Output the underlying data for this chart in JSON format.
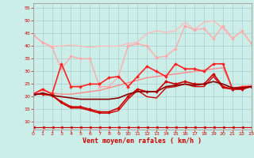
{
  "xlabel": "Vent moyen/en rafales ( km/h )",
  "xlim": [
    0,
    23
  ],
  "ylim": [
    7,
    57
  ],
  "yticks": [
    10,
    15,
    20,
    25,
    30,
    35,
    40,
    45,
    50,
    55
  ],
  "xticks": [
    0,
    1,
    2,
    3,
    4,
    5,
    6,
    7,
    8,
    9,
    10,
    11,
    12,
    13,
    14,
    15,
    16,
    17,
    18,
    19,
    20,
    21,
    22,
    23
  ],
  "bg_color": "#cceee8",
  "grid_color": "#aacccc",
  "lines": [
    {
      "x": [
        0,
        1,
        2,
        3,
        4,
        5,
        6,
        7,
        8,
        9,
        10,
        11,
        12,
        13,
        14,
        15,
        16,
        17,
        18,
        19,
        20,
        21,
        22,
        23
      ],
      "y": [
        44.5,
        41.5,
        40,
        40,
        40.5,
        40,
        39.5,
        40,
        40,
        40,
        41,
        41.5,
        45,
        46,
        45.5,
        46,
        49.5,
        46.5,
        49.5,
        50,
        47,
        43,
        46,
        41
      ],
      "color": "#ffbbbb",
      "lw": 1.0,
      "marker": null
    },
    {
      "x": [
        0,
        1,
        2,
        3,
        4,
        5,
        6,
        7,
        8,
        9,
        10,
        11,
        12,
        13,
        14,
        15,
        16,
        17,
        18,
        19,
        20,
        21,
        22,
        23
      ],
      "y": [
        44.5,
        41.5,
        39.5,
        31,
        36,
        35,
        35,
        24,
        24,
        28,
        40,
        41,
        40,
        35.5,
        36,
        39,
        48,
        46.5,
        47,
        43,
        48,
        43,
        46,
        41
      ],
      "color": "#ffaaaa",
      "lw": 1.0,
      "marker": "D",
      "ms": 2.0
    },
    {
      "x": [
        0,
        1,
        2,
        3,
        4,
        5,
        6,
        7,
        8,
        9,
        10,
        11,
        12,
        13,
        14,
        15,
        16,
        17,
        18,
        19,
        20,
        21,
        22,
        23
      ],
      "y": [
        21.0,
        22.5,
        21.5,
        21.0,
        21.0,
        21.5,
        22.0,
        22.5,
        23.5,
        24.5,
        25.5,
        26.5,
        27.5,
        28.0,
        28.5,
        29.0,
        29.5,
        30.0,
        30.5,
        31.0,
        31.5,
        23.5,
        24.0,
        24.5
      ],
      "color": "#ff8888",
      "lw": 1.0,
      "marker": null
    },
    {
      "x": [
        0,
        1,
        2,
        3,
        4,
        5,
        6,
        7,
        8,
        9,
        10,
        11,
        12,
        13,
        14,
        15,
        16,
        17,
        18,
        19,
        20,
        21,
        22,
        23
      ],
      "y": [
        21.0,
        23.0,
        21.0,
        33.0,
        24.0,
        24.0,
        25.0,
        25.0,
        27.5,
        28.0,
        24.0,
        28.0,
        32.0,
        30.0,
        28.0,
        33.0,
        31.0,
        31.0,
        30.0,
        33.0,
        33.0,
        23.0,
        24.0,
        24.0
      ],
      "color": "#ff2222",
      "lw": 1.2,
      "marker": "D",
      "ms": 2.0
    },
    {
      "x": [
        0,
        1,
        2,
        3,
        4,
        5,
        6,
        7,
        8,
        9,
        10,
        11,
        12,
        13,
        14,
        15,
        16,
        17,
        18,
        19,
        20,
        21,
        22,
        23
      ],
      "y": [
        21.0,
        21.0,
        20.5,
        18.0,
        16.0,
        16.0,
        15.0,
        14.0,
        14.0,
        15.5,
        20.0,
        23.0,
        22.0,
        22.0,
        26.0,
        25.0,
        26.0,
        25.0,
        25.0,
        29.0,
        24.0,
        23.0,
        23.0,
        24.0
      ],
      "color": "#cc0000",
      "lw": 1.2,
      "marker": "D",
      "ms": 2.0
    },
    {
      "x": [
        0,
        1,
        2,
        3,
        4,
        5,
        6,
        7,
        8,
        9,
        10,
        11,
        12,
        13,
        14,
        15,
        16,
        17,
        18,
        19,
        20,
        21,
        22,
        23
      ],
      "y": [
        21.0,
        21.0,
        20.5,
        17.5,
        15.5,
        15.5,
        14.5,
        13.5,
        13.5,
        14.5,
        19.0,
        22.5,
        20.0,
        19.5,
        23.5,
        24.0,
        25.0,
        24.0,
        24.0,
        28.0,
        23.5,
        23.0,
        23.0,
        24.0
      ],
      "color": "#cc0000",
      "lw": 1.0,
      "marker": null
    },
    {
      "x": [
        0,
        1,
        2,
        3,
        4,
        5,
        6,
        7,
        8,
        9,
        10,
        11,
        12,
        13,
        14,
        15,
        16,
        17,
        18,
        19,
        20,
        21,
        22,
        23
      ],
      "y": [
        20.5,
        21.5,
        20.5,
        20.0,
        19.5,
        19.0,
        19.0,
        19.0,
        19.0,
        19.5,
        21.0,
        22.0,
        22.0,
        22.0,
        24.0,
        24.5,
        25.0,
        24.5,
        25.0,
        26.0,
        25.0,
        23.5,
        23.5,
        24.0
      ],
      "color": "#880000",
      "lw": 1.2,
      "marker": null
    },
    {
      "x": [
        0,
        1,
        2,
        3,
        4,
        5,
        6,
        7,
        8,
        9,
        10,
        11,
        12,
        13,
        14,
        15,
        16,
        17,
        18,
        19,
        20,
        21,
        22,
        23
      ],
      "y": [
        8.0,
        8.0,
        8.0,
        8.0,
        8.0,
        8.0,
        8.0,
        8.0,
        8.0,
        8.0,
        8.0,
        8.0,
        8.0,
        8.0,
        8.0,
        8.0,
        8.0,
        8.0,
        8.0,
        8.0,
        8.0,
        8.0,
        8.0,
        8.0
      ],
      "color": "#cc0000",
      "lw": 0.8,
      "marker": "<",
      "ms": 2.5
    }
  ]
}
